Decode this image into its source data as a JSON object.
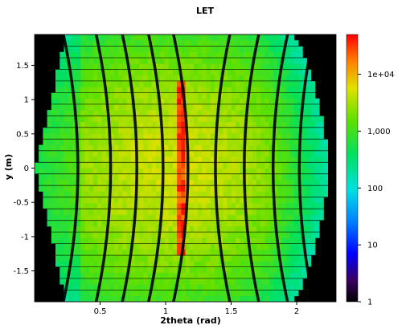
{
  "chart_data": {
    "type": "heatmap",
    "title": "LET",
    "xlabel": "2theta (rad)",
    "ylabel": "y (m)",
    "xlim": [
      0.0,
      2.3
    ],
    "ylim": [
      -1.95,
      1.95
    ],
    "x_ticks": [
      {
        "value": 0.5,
        "label": "0.5"
      },
      {
        "value": 1.0,
        "label": "1"
      },
      {
        "value": 1.5,
        "label": "1.5"
      },
      {
        "value": 2.0,
        "label": "2"
      }
    ],
    "y_ticks": [
      {
        "value": 1.5,
        "label": "1.5"
      },
      {
        "value": 1.0,
        "label": "1"
      },
      {
        "value": 0.5,
        "label": "0.5"
      },
      {
        "value": 0.0,
        "label": "0"
      },
      {
        "value": -0.5,
        "label": "-0.5"
      },
      {
        "value": -1.0,
        "label": "-1"
      },
      {
        "value": -1.5,
        "label": "-1.5"
      }
    ],
    "colorbar": {
      "scale": "log",
      "range": [
        1,
        50000
      ],
      "ticks": [
        {
          "value": 10000,
          "label": "1e+04"
        },
        {
          "value": 1000,
          "label": "1,000"
        },
        {
          "value": 100,
          "label": "100"
        },
        {
          "value": 10,
          "label": "10"
        },
        {
          "value": 1,
          "label": "1"
        }
      ]
    },
    "background_color": "#000000",
    "grid": false
  }
}
